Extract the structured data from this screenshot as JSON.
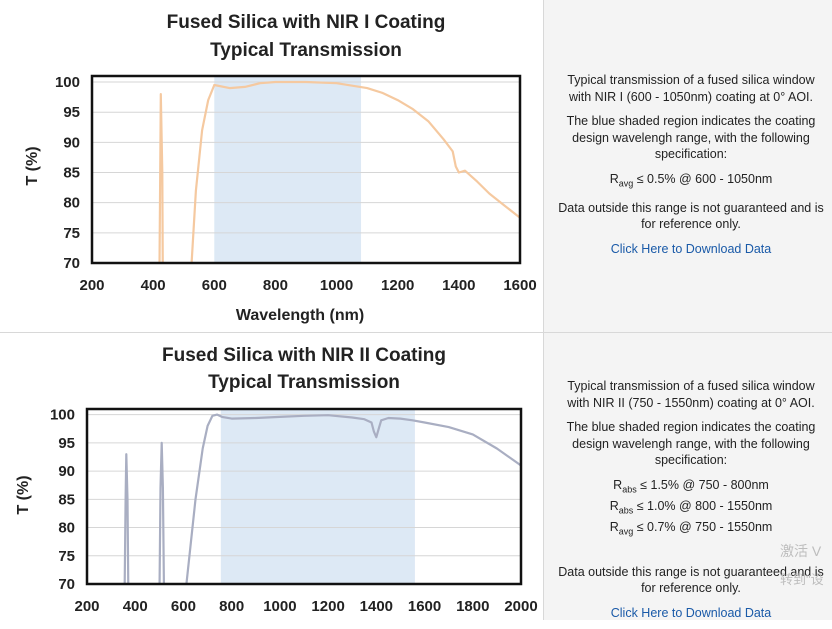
{
  "charts": [
    {
      "title_line1": "Fused Silica with NIR I Coating",
      "title_line2": "Typical Transmission",
      "xlabel": "Wavelength (nm)",
      "ylabel": "T (%)",
      "xticks": [
        "200",
        "400",
        "600",
        "800",
        "1000",
        "1200",
        "1400",
        "1600"
      ],
      "yticks": [
        "100",
        "95",
        "90",
        "85",
        "80",
        "75",
        "70"
      ],
      "description": {
        "p1": "Typical transmission of a fused silica window with NIR I (600 - 1050nm) coating at 0° AOI.",
        "p2": "The blue shaded region indicates the coating design wavelengh range, with the following specification:",
        "spec1_main": "R",
        "spec1_sub": "avg",
        "spec1_rest": " ≤ 0.5% @ 600 - 1050nm",
        "p3": "Data outside this range is not guaranteed and is for reference only.",
        "link": "Click Here to Download Data"
      }
    },
    {
      "title_line1": "Fused Silica with NIR II Coating",
      "title_line2": "Typical Transmission",
      "ylabel": "T (%)",
      "xticks": [
        "200",
        "400",
        "600",
        "800",
        "1000",
        "1200",
        "1400",
        "1600",
        "1800",
        "2000"
      ],
      "yticks": [
        "100",
        "95",
        "90",
        "85",
        "80",
        "75",
        "70"
      ],
      "description": {
        "p1": "Typical transmission of a fused silica window with NIR II (750 - 1550nm) coating at 0° AOI.",
        "p2": "The blue shaded region indicates the coating design wavelengh range, with the following specification:",
        "spec1_main": "R",
        "spec1_sub": "abs",
        "spec1_rest": " ≤ 1.5% @ 750 - 800nm",
        "spec2_main": "R",
        "spec2_sub": "abs",
        "spec2_rest": " ≤ 1.0% @ 800 - 1550nm",
        "spec3_main": "R",
        "spec3_sub": "avg",
        "spec3_rest": " ≤ 0.7% @ 750 - 1550nm",
        "p3": "Data outside this range is not guaranteed and is for reference only.",
        "link": "Click Here to Download Data"
      }
    }
  ],
  "watermark": {
    "line1": "激活 V",
    "line2": "转到\"设"
  },
  "colors": {
    "nir1_curve": "#f5c9a0",
    "nir2_curve": "#a9aec2",
    "shade": "#dde9f5"
  },
  "chart_data": [
    {
      "type": "line",
      "title": "Fused Silica with NIR I Coating Typical Transmission",
      "xlabel": "Wavelength (nm)",
      "ylabel": "T (%)",
      "xlim": [
        200,
        1600
      ],
      "ylim": [
        70,
        101
      ],
      "shaded_range": [
        600,
        1080
      ],
      "series": [
        {
          "x": [
            420,
            425,
            430,
            432
          ],
          "y": [
            65,
            98,
            85,
            65
          ]
        },
        {
          "x": [
            520,
            540,
            560,
            580,
            600,
            650,
            700,
            750,
            800,
            900,
            1000,
            1100,
            1150,
            1200,
            1250,
            1300,
            1350,
            1380,
            1390,
            1400,
            1420,
            1460,
            1500,
            1550,
            1600
          ],
          "y": [
            65,
            82,
            92,
            97,
            99.5,
            99,
            99.2,
            99.8,
            100,
            100,
            99.8,
            99,
            98.2,
            97,
            95.5,
            93.5,
            90.5,
            88.5,
            86,
            85,
            85.3,
            83.5,
            81.5,
            79.5,
            77.5
          ]
        }
      ]
    },
    {
      "type": "line",
      "title": "Fused Silica with NIR II Coating Typical Transmission",
      "xlabel": "",
      "ylabel": "T (%)",
      "xlim": [
        200,
        2000
      ],
      "ylim": [
        70,
        101
      ],
      "shaded_range": [
        755,
        1560
      ],
      "series": [
        {
          "x": [
            355,
            360,
            363,
            368,
            372
          ],
          "y": [
            65,
            85,
            93,
            85,
            65
          ]
        },
        {
          "x": [
            500,
            505,
            510,
            515,
            520
          ],
          "y": [
            65,
            87,
            95,
            87,
            65
          ]
        },
        {
          "x": [
            600,
            650,
            680,
            700,
            720,
            740,
            760,
            800,
            900,
            1000,
            1100,
            1200,
            1300,
            1350,
            1380,
            1390,
            1400,
            1410,
            1420,
            1450,
            1500,
            1550,
            1600,
            1700,
            1800,
            1900,
            2000
          ],
          "y": [
            65,
            85,
            94,
            98,
            99.8,
            100,
            99.6,
            99.3,
            99.4,
            99.6,
            99.8,
            99.9,
            99.5,
            99.2,
            98.6,
            97,
            96,
            97.5,
            99,
            99.4,
            99.3,
            99,
            98.6,
            97.8,
            96.5,
            94,
            91
          ]
        }
      ]
    }
  ]
}
